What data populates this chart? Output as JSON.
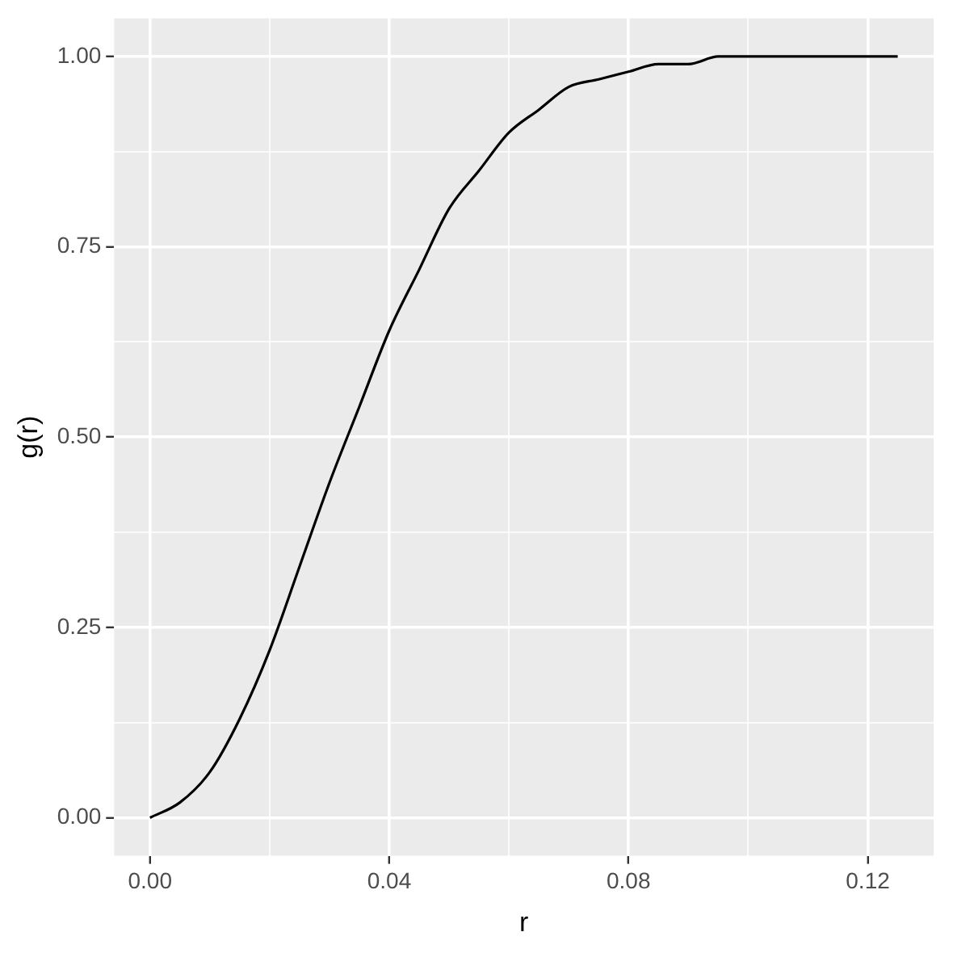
{
  "chart_data": {
    "type": "line",
    "xlabel": "r",
    "ylabel": "g(r)",
    "x": [
      0,
      0.005,
      0.01,
      0.015,
      0.02,
      0.025,
      0.03,
      0.035,
      0.04,
      0.045,
      0.05,
      0.055,
      0.06,
      0.065,
      0.07,
      0.075,
      0.08,
      0.085,
      0.09,
      0.095,
      0.1,
      0.105,
      0.11,
      0.115,
      0.12,
      0.125
    ],
    "series": [
      {
        "color": "#000000",
        "values": [
          0,
          0.02,
          0.06,
          0.13,
          0.22,
          0.33,
          0.44,
          0.54,
          0.64,
          0.72,
          0.8,
          0.85,
          0.9,
          0.93,
          0.96,
          0.97,
          0.98,
          0.99,
          0.99,
          1.0,
          1.0,
          1.0,
          1.0,
          1.0,
          1.0,
          1.0
        ]
      }
    ],
    "xlim": [
      -0.006,
      0.131
    ],
    "ylim": [
      -0.05,
      1.05
    ],
    "xticks": [
      {
        "value": 0,
        "label": "0.00"
      },
      {
        "value": 0.02,
        "label": null
      },
      {
        "value": 0.04,
        "label": "0.04"
      },
      {
        "value": 0.06,
        "label": null
      },
      {
        "value": 0.08,
        "label": "0.08"
      },
      {
        "value": 0.1,
        "label": null
      },
      {
        "value": 0.12,
        "label": "0.12"
      }
    ],
    "yticks": [
      {
        "value": 0,
        "label": "0.00"
      },
      {
        "value": 0.125,
        "label": null
      },
      {
        "value": 0.25,
        "label": "0.25"
      },
      {
        "value": 0.375,
        "label": null
      },
      {
        "value": 0.5,
        "label": "0.50"
      },
      {
        "value": 0.625,
        "label": null
      },
      {
        "value": 0.75,
        "label": "0.75"
      },
      {
        "value": 0.875,
        "label": null
      },
      {
        "value": 1,
        "label": "1.00"
      }
    ],
    "grid": true,
    "legend": false,
    "marker": "none",
    "line_style": "solid"
  }
}
